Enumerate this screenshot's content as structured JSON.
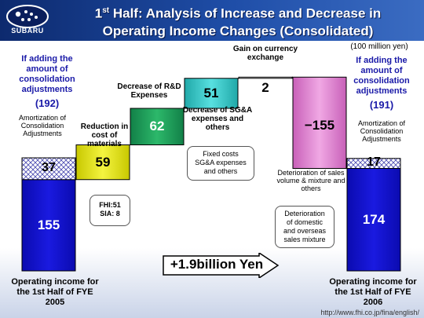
{
  "header": {
    "logo_text": "SUBARU",
    "title_line1_pre": "1",
    "title_line1_sup": "st",
    "title_line1_post": " Half: Analysis of Increase and Decrease in",
    "title_line2": "Operating Income Changes (Consolidated)"
  },
  "unit_label": "(100 million yen)",
  "left_note": {
    "heading": "If adding the amount of consolidation adjustments",
    "value": "(192)",
    "amortization_label": "Amortization of Consolidation Adjustments",
    "axis_label": "Operating income for the 1st Half of FYE 2005"
  },
  "right_note": {
    "heading": "If adding the amount of consolidation adjustments",
    "value": "(191)",
    "amortization_label": "Amortization of Consolidation Adjustments",
    "axis_label": "Operating income for the 1st Half of FYE 2006"
  },
  "chart_data": {
    "type": "waterfall",
    "steps": [
      {
        "label": "Operating income for the 1st Half of FYE 2005",
        "value": 155,
        "adjustment": 37,
        "color": "#1212c8"
      },
      {
        "label": "Reduction in cost of materials",
        "value": 59,
        "color": "#e8e81a"
      },
      {
        "label": "Decrease of R&D Expenses",
        "value": 62,
        "color": "#22a05a"
      },
      {
        "label": "Decrease of SG&A expenses and others",
        "value": 51,
        "color": "#38c8c8"
      },
      {
        "label": "Gain on currency exchange",
        "value": 2,
        "color": "#ffffff"
      },
      {
        "label": "Deterioration of sales volume & mixture and others",
        "value": -155,
        "color": "#e08ad0"
      },
      {
        "label": "Operating income for the 1st Half of FYE 2006",
        "value": 174,
        "adjustment": 17,
        "color": "#1212c8"
      }
    ],
    "value_labels": [
      "155",
      "37",
      "59",
      "62",
      "51",
      "2",
      "−155",
      "174",
      "17"
    ],
    "total_change": "+1.9billion Yen"
  },
  "labels": {
    "reduction_materials": "Reduction in cost of materials",
    "rd_expenses": "Decrease of R&D Expenses",
    "currency": "Gain on currency exchange",
    "sga": "Decrease of SG&A expenses and others",
    "deterioration_mix": "Deterioration of sales volume & mixture and others"
  },
  "callouts": {
    "fhi_sia": [
      "FHI:51",
      "SIA:  8"
    ],
    "fixed_costs": [
      "Fixed costs",
      "SG&A expenses",
      "and others"
    ],
    "deterioration_domestic": [
      "Deterioration",
      "of domestic",
      "and overseas",
      "sales mixture"
    ]
  },
  "footer_url": "http://www.fhi.co.jp/fina/english/"
}
